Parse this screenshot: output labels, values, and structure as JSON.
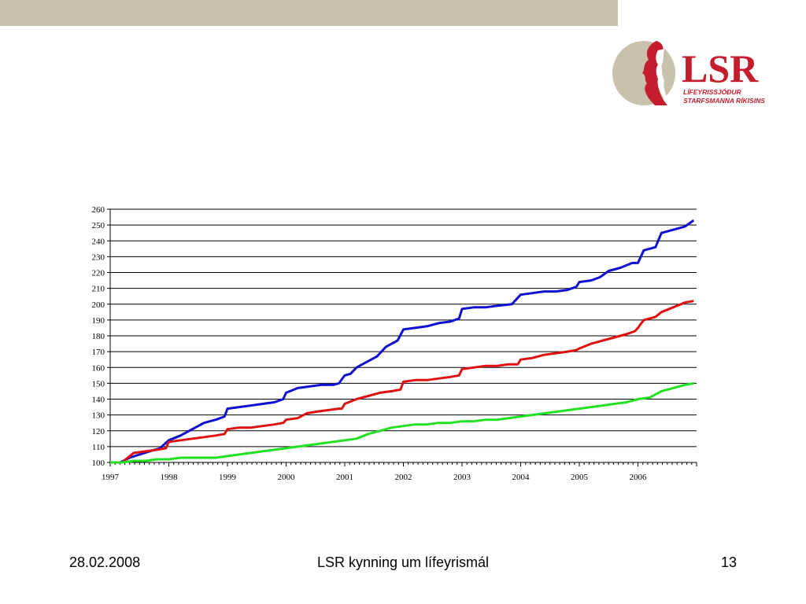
{
  "slide": {
    "colors": {
      "top_bar": "#c8c2ad",
      "logo_red": "#c41e2e",
      "logo_tan": "#c8c2ad"
    },
    "logo": {
      "wordmark": "LSR",
      "line1": "LÍFEYRISSJÓÐUR",
      "line2": "STARFSMANNA RÍKISINS"
    },
    "footer": {
      "date": "28.02.2008",
      "title": "LSR kynning um lífeyrismál",
      "page": "13"
    }
  },
  "chart_data": {
    "type": "line",
    "title": "",
    "xlabel": "",
    "ylabel": "",
    "ylim": [
      100,
      260
    ],
    "yticks": [
      100,
      110,
      120,
      130,
      140,
      150,
      160,
      170,
      180,
      190,
      200,
      210,
      220,
      230,
      240,
      250,
      260
    ],
    "xlim": [
      1997,
      2007
    ],
    "xticks": [
      "1997",
      "1998",
      "1999",
      "2000",
      "2001",
      "2002",
      "2003",
      "2004",
      "2005",
      "2006"
    ],
    "grid": "horizontal",
    "legend": "none",
    "series": [
      {
        "color": "#1010d0",
        "x": [
          1997.0,
          1997.17,
          1997.33,
          1997.5,
          1997.67,
          1997.85,
          1998.0,
          1998.2,
          1998.4,
          1998.6,
          1998.8,
          1998.95,
          1999.0,
          1999.2,
          1999.4,
          1999.6,
          1999.8,
          1999.95,
          2000.0,
          2000.2,
          2000.4,
          2000.6,
          2000.8,
          2000.9,
          2001.0,
          2001.1,
          2001.2,
          2001.35,
          2001.5,
          2001.55,
          2001.7,
          2001.8,
          2001.9,
          2002.0,
          2002.2,
          2002.4,
          2002.6,
          2002.8,
          2002.95,
          2003.0,
          2003.2,
          2003.4,
          2003.6,
          2003.85,
          2004.0,
          2004.2,
          2004.4,
          2004.6,
          2004.8,
          2004.95,
          2005.0,
          2005.2,
          2005.35,
          2005.5,
          2005.7,
          2005.9,
          2006.0,
          2006.1,
          2006.3,
          2006.4,
          2006.6,
          2006.8,
          2006.95
        ],
        "values": [
          100,
          100,
          103,
          105,
          107,
          109,
          114,
          117,
          121,
          125,
          127,
          129,
          134,
          135,
          136,
          137,
          138,
          140,
          144,
          147,
          148,
          149,
          149,
          150,
          155,
          156,
          160,
          163,
          166,
          167,
          173,
          175,
          177,
          184,
          185,
          186,
          188,
          189,
          191,
          197,
          198,
          198,
          199,
          200,
          206,
          207,
          208,
          208,
          209,
          211,
          214,
          215,
          217,
          221,
          223,
          226,
          226,
          234,
          236,
          245,
          247,
          249,
          253
        ]
      },
      {
        "color": "#e01010",
        "x": [
          1997.0,
          1997.2,
          1997.4,
          1997.6,
          1997.8,
          1997.95,
          1998.0,
          1998.2,
          1998.4,
          1998.6,
          1998.8,
          1998.95,
          1999.0,
          1999.2,
          1999.4,
          1999.6,
          1999.8,
          1999.95,
          2000.0,
          2000.2,
          2000.35,
          2000.5,
          2000.7,
          2000.9,
          2000.95,
          2001.0,
          2001.2,
          2001.4,
          2001.6,
          2001.8,
          2001.95,
          2002.0,
          2002.2,
          2002.4,
          2002.6,
          2002.8,
          2002.95,
          2003.0,
          2003.2,
          2003.4,
          2003.6,
          2003.8,
          2003.95,
          2004.0,
          2004.2,
          2004.4,
          2004.6,
          2004.8,
          2004.95,
          2005.0,
          2005.2,
          2005.4,
          2005.6,
          2005.8,
          2005.95,
          2006.0,
          2006.1,
          2006.3,
          2006.4,
          2006.6,
          2006.8,
          2006.95
        ],
        "values": [
          100,
          100,
          106,
          107,
          108,
          109,
          113,
          114,
          115,
          116,
          117,
          118,
          121,
          122,
          122,
          123,
          124,
          125,
          127,
          128,
          131,
          132,
          133,
          134,
          134,
          137,
          140,
          142,
          144,
          145,
          146,
          151,
          152,
          152,
          153,
          154,
          155,
          159,
          160,
          161,
          161,
          162,
          162,
          165,
          166,
          168,
          169,
          170,
          171,
          172,
          175,
          177,
          179,
          181,
          183,
          185,
          190,
          192,
          195,
          198,
          201,
          202
        ]
      },
      {
        "color": "#22e022",
        "x": [
          1997.0,
          1997.2,
          1997.4,
          1997.6,
          1997.8,
          1998.0,
          1998.2,
          1998.4,
          1998.6,
          1998.8,
          1999.0,
          1999.2,
          1999.4,
          1999.6,
          1999.8,
          2000.0,
          2000.2,
          2000.4,
          2000.6,
          2000.8,
          2001.0,
          2001.2,
          2001.4,
          2001.6,
          2001.8,
          2002.0,
          2002.2,
          2002.4,
          2002.6,
          2002.8,
          2003.0,
          2003.2,
          2003.4,
          2003.6,
          2003.8,
          2004.0,
          2004.2,
          2004.4,
          2004.6,
          2004.8,
          2005.0,
          2005.2,
          2005.4,
          2005.6,
          2005.8,
          2006.0,
          2006.2,
          2006.4,
          2006.6,
          2006.8,
          2006.95
        ],
        "values": [
          100,
          100,
          101,
          101,
          102,
          102,
          103,
          103,
          103,
          103,
          104,
          105,
          106,
          107,
          108,
          109,
          110,
          111,
          112,
          113,
          114,
          115,
          118,
          120,
          122,
          123,
          124,
          124,
          125,
          125,
          126,
          126,
          127,
          127,
          128,
          129,
          130,
          131,
          132,
          133,
          134,
          135,
          136,
          137,
          138,
          140,
          141,
          145,
          147,
          149,
          150
        ]
      }
    ]
  }
}
